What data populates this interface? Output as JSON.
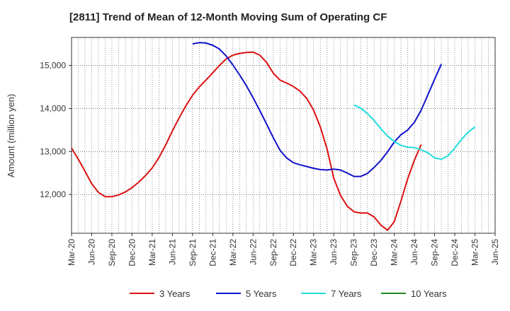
{
  "chart_data": {
    "type": "line",
    "title": "[2811]  Trend of Mean of 12-Month Moving Sum of Operating CF",
    "xlabel": "",
    "ylabel": "Amount (million yen)",
    "ylim": [
      11100,
      15650
    ],
    "yticks": [
      12000,
      13000,
      14000,
      15000
    ],
    "ytick_labels": [
      "12,000",
      "13,000",
      "14,000",
      "15,000"
    ],
    "xticks": [
      "Mar-20",
      "Jun-20",
      "Sep-20",
      "Dec-20",
      "Mar-21",
      "Jun-21",
      "Sep-21",
      "Dec-21",
      "Mar-22",
      "Jun-22",
      "Sep-22",
      "Dec-22",
      "Mar-23",
      "Jun-23",
      "Sep-23",
      "Dec-23",
      "Mar-24",
      "Jun-24",
      "Sep-24",
      "Dec-24",
      "Mar-25",
      "Jun-25"
    ],
    "grid": true,
    "legend_position": "bottom",
    "series": [
      {
        "name": "3 Years",
        "color": "#dd1111",
        "start_index": 0,
        "values": [
          13080,
          12820,
          12540,
          12250,
          12050,
          11950,
          11950,
          11990,
          12060,
          12160,
          12290,
          12440,
          12620,
          12860,
          13150,
          13480,
          13780,
          14060,
          14310,
          14500,
          14660,
          14830,
          15000,
          15150,
          15240,
          15280,
          15300,
          15310,
          15240,
          15070,
          14820,
          14660,
          14590,
          14510,
          14400,
          14230,
          13960,
          13570,
          13060,
          12380,
          11980,
          11730,
          11600,
          11570,
          11570,
          11480,
          11290,
          11170,
          11370,
          11850,
          12370,
          12800,
          13160
        ]
      },
      {
        "name": "5 Years",
        "color": "#1111cc",
        "start_index": 18,
        "values": [
          15500,
          15530,
          15520,
          15470,
          15380,
          15220,
          15010,
          14780,
          14530,
          14250,
          13950,
          13640,
          13320,
          13030,
          12850,
          12740,
          12690,
          12650,
          12610,
          12580,
          12570,
          12590,
          12570,
          12500,
          12420,
          12420,
          12490,
          12630,
          12790,
          12990,
          13220,
          13390,
          13500,
          13680,
          13960,
          14320,
          14680,
          15030
        ]
      },
      {
        "name": "7 Years",
        "color": "#22dddd",
        "start_index": 42,
        "values": [
          14080,
          14010,
          13880,
          13720,
          13530,
          13360,
          13230,
          13140,
          13100,
          13090,
          13040,
          12970,
          12850,
          12820,
          12900,
          13080,
          13280,
          13450,
          13570
        ]
      },
      {
        "name": "10 Years",
        "color": "#228822",
        "start_index": 0,
        "values": []
      }
    ]
  }
}
